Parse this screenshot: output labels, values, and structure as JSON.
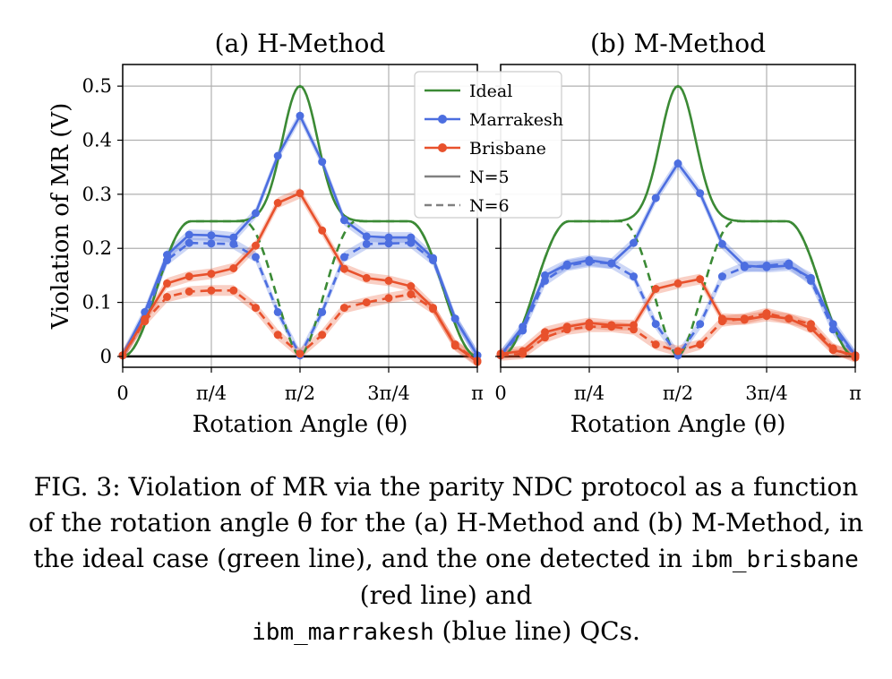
{
  "chart_data": [
    {
      "type": "line",
      "title": "(a) H-Method",
      "xlabel": "Rotation Angle (θ)",
      "ylabel": "Violation of MR (V)",
      "xlim": [
        0,
        3.1416
      ],
      "ylim": [
        -0.02,
        0.54
      ],
      "xticks": [
        0,
        0.7854,
        1.5708,
        2.3562,
        3.1416
      ],
      "xtick_labels": [
        "0",
        "π/4",
        "π/2",
        "3π/4",
        "π"
      ],
      "yticks": [
        0,
        0.1,
        0.2,
        0.3,
        0.4,
        0.5
      ],
      "ytick_labels": [
        "0",
        "0.1",
        "0.2",
        "0.3",
        "0.4",
        "0.5"
      ],
      "grid": true,
      "legend_position": "top-right",
      "x": [
        0,
        0.196,
        0.393,
        0.589,
        0.785,
        0.982,
        1.178,
        1.374,
        1.571,
        1.767,
        1.963,
        2.16,
        2.356,
        2.553,
        2.749,
        2.945,
        3.1416
      ],
      "series": [
        {
          "name": "Marrakesh",
          "style": "N=5",
          "color": "#4c6ee0",
          "values": [
            0.002,
            0.082,
            0.188,
            0.225,
            0.224,
            0.22,
            0.265,
            0.371,
            0.445,
            0.36,
            0.252,
            0.222,
            0.22,
            0.22,
            0.182,
            0.07,
            0.002
          ]
        },
        {
          "name": "Marrakesh",
          "style": "N=6",
          "color": "#4c6ee0",
          "values": [
            0.002,
            0.07,
            0.178,
            0.21,
            0.209,
            0.208,
            0.184,
            0.082,
            0.002,
            0.082,
            0.184,
            0.208,
            0.209,
            0.21,
            0.178,
            0.07,
            0.002
          ]
        },
        {
          "name": "Brisbane",
          "style": "N=5",
          "color": "#e8512c",
          "values": [
            0.002,
            0.069,
            0.135,
            0.148,
            0.153,
            0.163,
            0.205,
            0.284,
            0.302,
            0.233,
            0.162,
            0.145,
            0.14,
            0.13,
            0.09,
            0.02,
            -0.01
          ]
        },
        {
          "name": "Brisbane",
          "style": "N=6",
          "color": "#e8512c",
          "values": [
            0.002,
            0.065,
            0.11,
            0.12,
            0.122,
            0.122,
            0.09,
            0.04,
            0.005,
            0.04,
            0.09,
            0.1,
            0.108,
            0.115,
            0.088,
            0.022,
            -0.008
          ]
        }
      ],
      "ideal_color": "#3b8a35",
      "legend": [
        {
          "label": "Ideal",
          "color": "#3b8a35",
          "kind": "line"
        },
        {
          "label": "Marrakesh",
          "color": "#4c6ee0",
          "kind": "marker"
        },
        {
          "label": "Brisbane",
          "color": "#e8512c",
          "kind": "marker"
        },
        {
          "label": "N=5",
          "color": "#808080",
          "kind": "solid"
        },
        {
          "label": "N=6",
          "color": "#808080",
          "kind": "dashed"
        }
      ]
    },
    {
      "type": "line",
      "title": "(b) M-Method",
      "xlabel": "Rotation Angle (θ)",
      "ylabel": "",
      "xlim": [
        0,
        3.1416
      ],
      "ylim": [
        -0.02,
        0.54
      ],
      "xticks": [
        0,
        0.7854,
        1.5708,
        2.3562,
        3.1416
      ],
      "xtick_labels": [
        "0",
        "π/4",
        "π/2",
        "3π/4",
        "π"
      ],
      "yticks": [
        0,
        0.1,
        0.2,
        0.3,
        0.4,
        0.5
      ],
      "grid": true,
      "x": [
        0,
        0.196,
        0.393,
        0.589,
        0.785,
        0.982,
        1.178,
        1.374,
        1.571,
        1.767,
        1.963,
        2.16,
        2.356,
        2.553,
        2.749,
        2.945,
        3.1416
      ],
      "series": [
        {
          "name": "Marrakesh",
          "style": "N=5",
          "color": "#4c6ee0",
          "values": [
            0.002,
            0.055,
            0.15,
            0.17,
            0.178,
            0.172,
            0.21,
            0.293,
            0.357,
            0.302,
            0.208,
            0.168,
            0.165,
            0.168,
            0.145,
            0.06,
            0.002
          ]
        },
        {
          "name": "Marrakesh",
          "style": "N=6",
          "color": "#4c6ee0",
          "values": [
            0.002,
            0.048,
            0.14,
            0.168,
            0.175,
            0.172,
            0.148,
            0.06,
            0.002,
            0.06,
            0.148,
            0.165,
            0.168,
            0.172,
            0.14,
            0.05,
            0.002
          ]
        },
        {
          "name": "Brisbane",
          "style": "N=5",
          "color": "#e8512c",
          "values": [
            0.005,
            0.01,
            0.045,
            0.055,
            0.062,
            0.058,
            0.058,
            0.125,
            0.135,
            0.143,
            0.07,
            0.068,
            0.075,
            0.07,
            0.052,
            0.012,
            0.002
          ]
        },
        {
          "name": "Brisbane",
          "style": "N=6",
          "color": "#e8512c",
          "values": [
            0.002,
            0.005,
            0.035,
            0.05,
            0.055,
            0.055,
            0.05,
            0.022,
            0.01,
            0.022,
            0.065,
            0.07,
            0.08,
            0.07,
            0.06,
            0.015,
            -0.002
          ]
        }
      ],
      "ideal_color": "#3b8a35"
    }
  ],
  "caption": {
    "part1": "FIG. 3: Violation of MR via the parity NDC protocol as a function of the rotation angle θ for the (a) H-Method and (b) M-Method, in the ideal case (green line), and the one detected in",
    "code1": "ibm_brisbane",
    "part2": "(red line) and",
    "code2": "ibm_marrakesh",
    "part3": "(blue line) QCs."
  }
}
